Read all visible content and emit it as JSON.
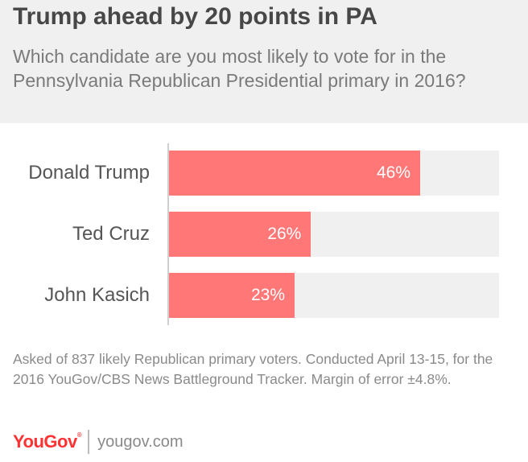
{
  "header": {
    "title": "Trump ahead by 20 points in PA",
    "subtitle": "Which candidate are you most likely to vote for in the Pennsylvania Republican Presidential primary in 2016?"
  },
  "chart_data": {
    "type": "bar",
    "orientation": "horizontal",
    "categories": [
      "Donald Trump",
      "Ted Cruz",
      "John Kasich"
    ],
    "values": [
      46,
      26,
      23
    ],
    "value_labels": [
      "46%",
      "26%",
      "23%"
    ],
    "xlim": [
      0,
      50
    ],
    "bar_color": "#ff7777",
    "track_color": "#f0f0f0"
  },
  "footnote": "Asked of 837 likely Republican primary voters. Conducted April 13-15, for the 2016 YouGov/CBS News Battleground Tracker. Margin of error ±4.8%.",
  "footer": {
    "logo": "YouGov",
    "logo_mark": "®",
    "site": "yougov.com"
  }
}
